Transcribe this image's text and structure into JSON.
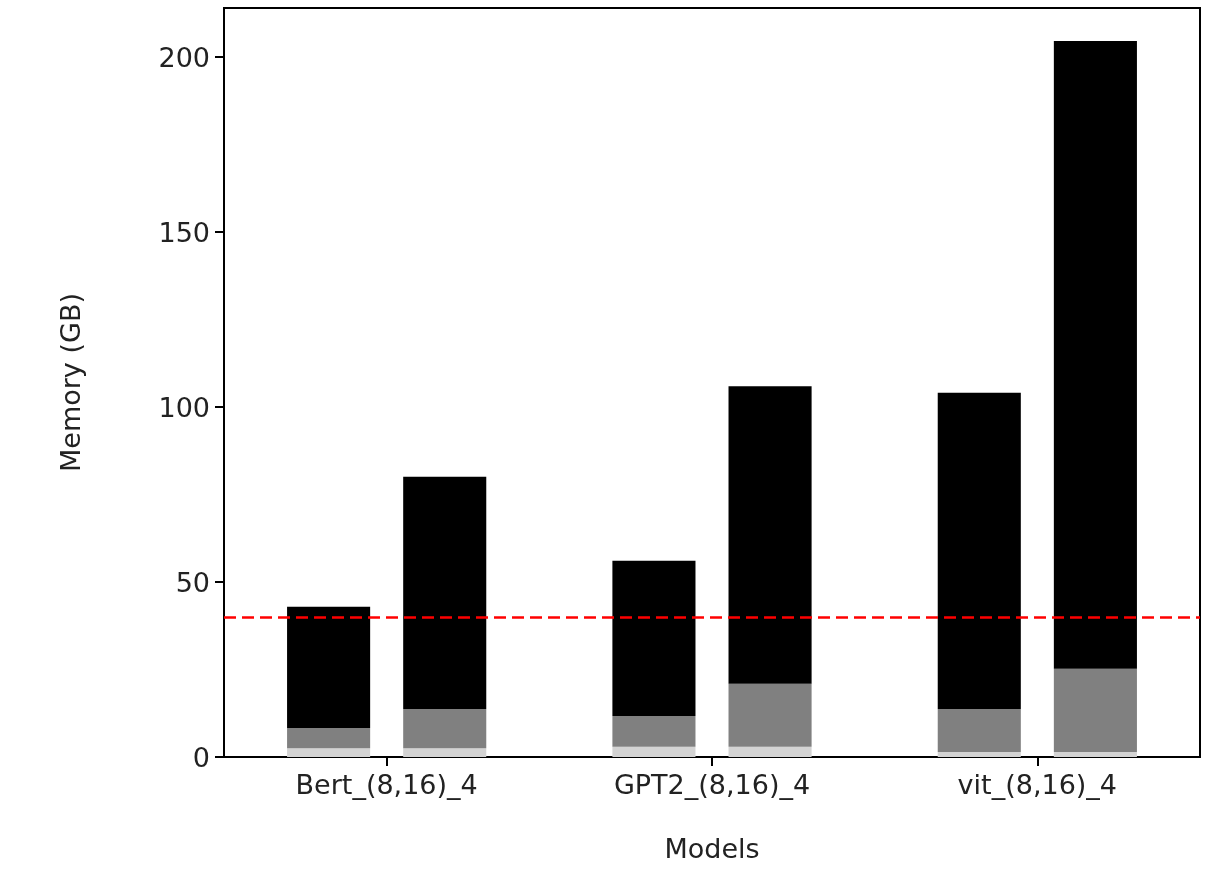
{
  "chart_data": {
    "type": "bar",
    "xlabel": "Models",
    "ylabel": "Memory (GB)",
    "categories": [
      "Bert_(8,16)_4",
      "GPT2_(8,16)_4",
      "vit_(8,16)_4"
    ],
    "series": [
      {
        "color": "#d3d3d3",
        "base": [
          0,
          0,
          0
        ],
        "values": [
          2.5,
          2.9,
          1.4
        ]
      },
      {
        "color": "#808080",
        "base": [
          2.5,
          2.9,
          1.4
        ],
        "values": [
          5.8,
          8.8,
          12.3
        ]
      },
      {
        "color": "#000000",
        "base": [
          8.3,
          11.7,
          13.7
        ],
        "values": [
          34.6,
          44.4,
          90.4
        ]
      },
      {
        "color": "#d3d3d3",
        "base": [
          0,
          0,
          0
        ],
        "values": [
          2.5,
          2.9,
          1.4
        ]
      },
      {
        "color": "#808080",
        "base": [
          2.5,
          2.9,
          1.4
        ],
        "values": [
          11.2,
          18.0,
          23.8
        ]
      },
      {
        "color": "#000000",
        "base": [
          13.7,
          20.9,
          25.2
        ],
        "values": [
          66.4,
          85.0,
          179.4
        ]
      }
    ],
    "ylim": [
      0,
      214
    ],
    "yticks": [
      0,
      50,
      100,
      150,
      200
    ],
    "grid": false,
    "ref_lines": [
      {
        "axis": "y",
        "value": 40,
        "color": "#ff0000",
        "line_style": "dashed"
      }
    ]
  }
}
